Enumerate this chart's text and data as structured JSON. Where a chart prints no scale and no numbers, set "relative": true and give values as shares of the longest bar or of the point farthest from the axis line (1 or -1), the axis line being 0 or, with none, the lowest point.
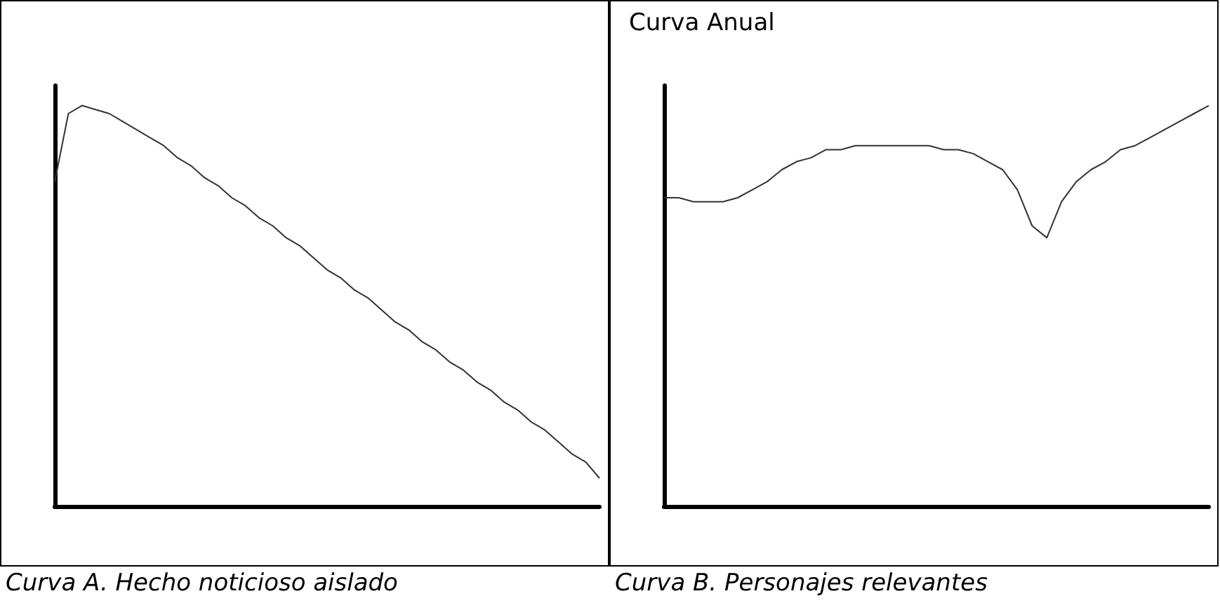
{
  "chart_data": [
    {
      "type": "line",
      "relative": true,
      "color": "#333333",
      "categories": [
        null,
        null,
        null,
        null,
        null,
        null,
        null,
        null,
        null,
        null,
        null,
        null,
        null,
        null,
        null,
        null,
        null,
        null,
        null,
        null,
        null,
        null,
        null,
        null,
        null,
        null,
        null,
        null,
        null,
        null,
        null,
        null,
        null,
        null,
        null,
        null,
        null,
        null,
        null,
        null,
        null
      ],
      "values": [
        0.81,
        0.98,
        1,
        0.99,
        0.98,
        0.96,
        0.94,
        0.92,
        0.9,
        0.87,
        0.85,
        0.82,
        0.8,
        0.77,
        0.75,
        0.72,
        0.7,
        0.67,
        0.65,
        0.62,
        0.59,
        0.57,
        0.54,
        0.52,
        0.49,
        0.46,
        0.44,
        0.41,
        0.39,
        0.36,
        0.34,
        0.31,
        0.29,
        0.26,
        0.24,
        0.21,
        0.19,
        0.16,
        0.13,
        0.11,
        0.07
      ],
      "annotations": [
        "Curva A. Hecho noticioso aislado"
      ]
    },
    {
      "type": "line",
      "relative": true,
      "color": "#333333",
      "title": "Curva Anual",
      "categories": [
        null,
        null,
        null,
        null,
        null,
        null,
        null,
        null,
        null,
        null,
        null,
        null,
        null,
        null,
        null,
        null,
        null,
        null,
        null,
        null,
        null,
        null,
        null,
        null,
        null,
        null,
        null,
        null,
        null,
        null,
        null,
        null,
        null,
        null,
        null,
        null,
        null,
        null
      ],
      "values": [
        0.77,
        0.77,
        0.76,
        0.76,
        0.76,
        0.77,
        0.79,
        0.81,
        0.84,
        0.86,
        0.87,
        0.89,
        0.89,
        0.9,
        0.9,
        0.9,
        0.9,
        0.9,
        0.9,
        0.89,
        0.89,
        0.88,
        0.86,
        0.84,
        0.79,
        0.7,
        0.67,
        0.76,
        0.81,
        0.84,
        0.86,
        0.89,
        0.9,
        0.92,
        0.94,
        0.96,
        0.98,
        1
      ],
      "annotations": [
        "Curva B. Personajes relevantes"
      ]
    }
  ]
}
